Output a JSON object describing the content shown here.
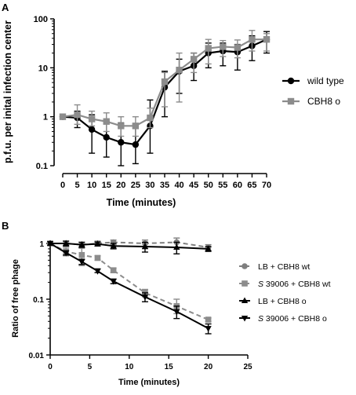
{
  "chart_data": [
    {
      "panel": "A",
      "type": "line",
      "xlabel": "Time (minutes)",
      "ylabel": "p.f.u. per inital infection center",
      "x_ticks": [
        0,
        5,
        10,
        15,
        20,
        25,
        30,
        35,
        40,
        45,
        50,
        55,
        60,
        65,
        70
      ],
      "y_scale": "log",
      "ylim": [
        0.1,
        100
      ],
      "y_ticks": [
        "0.1",
        "1",
        "10",
        "100"
      ],
      "legend_position": "right",
      "series": [
        {
          "name": "wild type",
          "color": "#000000",
          "marker": "circle",
          "x": [
            0,
            5,
            10,
            15,
            20,
            25,
            30,
            35,
            40,
            45,
            50,
            55,
            60,
            65,
            70
          ],
          "y": [
            1.0,
            0.95,
            0.55,
            0.38,
            0.3,
            0.27,
            0.65,
            4.0,
            8.5,
            11,
            20,
            22,
            21,
            28,
            38
          ],
          "err_low": [
            1.0,
            0.6,
            0.18,
            0.15,
            0.1,
            0.11,
            0.18,
            1.0,
            3.0,
            5.5,
            10,
            11,
            9,
            14,
            20
          ],
          "err_high": [
            1.0,
            1.3,
            1.1,
            0.8,
            0.75,
            0.7,
            2.2,
            8.5,
            15,
            20,
            32,
            32,
            30,
            45,
            55
          ]
        },
        {
          "name": "CBH8 o",
          "color": "#8c8c8c",
          "marker": "square",
          "x": [
            0,
            5,
            10,
            15,
            20,
            25,
            30,
            35,
            40,
            45,
            50,
            55,
            60,
            65,
            70
          ],
          "y": [
            1.0,
            1.1,
            0.9,
            0.8,
            0.65,
            0.65,
            0.95,
            5.2,
            9.0,
            15,
            25,
            27,
            26,
            38,
            38
          ],
          "err_low": [
            1.0,
            0.7,
            0.65,
            0.5,
            0.4,
            0.4,
            0.6,
            1.6,
            2.0,
            8,
            12,
            17,
            16,
            22,
            22
          ],
          "err_high": [
            1.0,
            1.75,
            1.3,
            1.2,
            1.0,
            1.0,
            1.5,
            8.0,
            20,
            20,
            38,
            36,
            37,
            58,
            50
          ]
        }
      ]
    },
    {
      "panel": "B",
      "type": "line",
      "xlabel": "Time (minutes)",
      "ylabel": "Ratio of free phage",
      "x_ticks": [
        0,
        5,
        10,
        15,
        20,
        25
      ],
      "xlim": [
        0,
        25
      ],
      "y_scale": "log",
      "ylim": [
        0.01,
        1
      ],
      "y_ticks": [
        "0.01",
        "0.1",
        "1"
      ],
      "legend_position": "right",
      "series": [
        {
          "name_italic": "",
          "name": "LB + CBH8 wt",
          "color": "#7f7f7f",
          "marker": "circle",
          "dashed": true,
          "x": [
            0,
            2,
            4,
            6,
            8,
            12,
            16,
            20
          ],
          "y": [
            1.0,
            1.0,
            0.95,
            1.0,
            1.05,
            1.0,
            1.05,
            0.85
          ],
          "err_low": [
            1.0,
            0.9,
            0.85,
            0.9,
            0.95,
            0.8,
            0.85,
            0.75
          ],
          "err_high": [
            1.0,
            1.1,
            1.05,
            1.1,
            1.15,
            1.15,
            1.25,
            0.95
          ]
        },
        {
          "name_italic": "S",
          "name": " 39006 + CBH8 wt",
          "color": "#8c8c8c",
          "marker": "square",
          "dashed": true,
          "x": [
            0,
            2,
            4,
            6,
            8,
            12,
            16,
            20
          ],
          "y": [
            1.0,
            0.72,
            0.62,
            0.55,
            0.33,
            0.13,
            0.075,
            0.043
          ],
          "err_low": [
            1.0,
            0.6,
            0.4,
            0.5,
            0.3,
            0.11,
            0.055,
            0.04
          ],
          "err_high": [
            1.0,
            0.85,
            0.82,
            0.6,
            0.36,
            0.15,
            0.1,
            0.046
          ]
        },
        {
          "name_italic": "",
          "name": "LB + CBH8 o",
          "color": "#000000",
          "marker": "triangle-up",
          "dashed": false,
          "x": [
            0,
            2,
            4,
            6,
            8,
            12,
            16,
            20
          ],
          "y": [
            1.0,
            1.0,
            0.95,
            0.98,
            0.9,
            0.88,
            0.85,
            0.8
          ],
          "err_low": [
            1.0,
            0.9,
            0.85,
            0.9,
            0.8,
            0.7,
            0.65,
            0.72
          ],
          "err_high": [
            1.0,
            1.1,
            1.05,
            1.06,
            1.0,
            1.05,
            1.05,
            0.88
          ]
        },
        {
          "name_italic": "S",
          "name": " 39006 + CBH8 o",
          "color": "#000000",
          "marker": "triangle-down",
          "dashed": false,
          "x": [
            0,
            2,
            4,
            6,
            8,
            12,
            16,
            20
          ],
          "y": [
            1.0,
            0.68,
            0.47,
            0.32,
            0.21,
            0.11,
            0.06,
            0.03
          ],
          "err_low": [
            1.0,
            0.62,
            0.42,
            0.3,
            0.19,
            0.09,
            0.045,
            0.024
          ],
          "err_high": [
            1.0,
            0.74,
            0.52,
            0.35,
            0.23,
            0.13,
            0.075,
            0.036
          ]
        }
      ]
    }
  ]
}
